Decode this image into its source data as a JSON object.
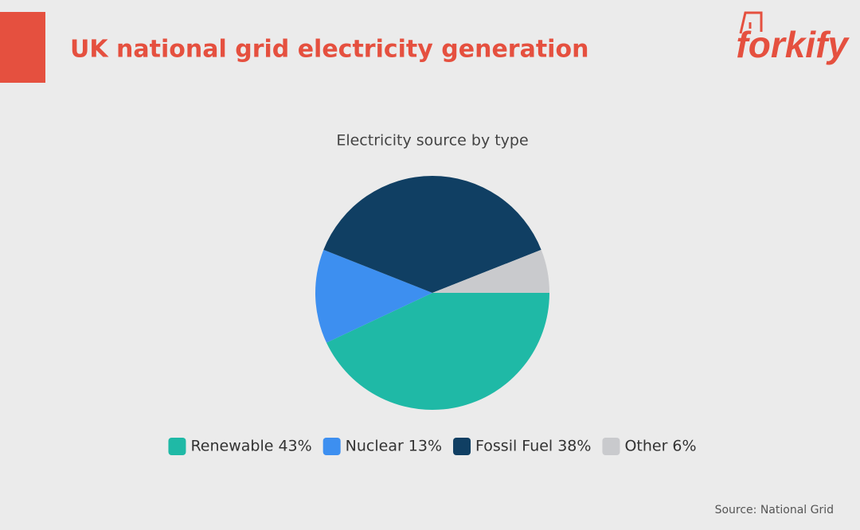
{
  "header": {
    "title": "UK national grid electricity generation",
    "logo": "forkify"
  },
  "chart_data": {
    "type": "pie",
    "title": "Electricity source by type",
    "categories": [
      "Renewable",
      "Nuclear",
      "Fossil Fuel",
      "Other"
    ],
    "values": [
      43,
      13,
      38,
      6
    ],
    "value_labels": [
      "43%",
      "13%",
      "38%",
      "6%"
    ],
    "colors": [
      "#1fb9a6",
      "#3d8ff0",
      "#103f63",
      "#c9cacd"
    ],
    "legend": "bottom"
  },
  "source": "Source: National Grid"
}
